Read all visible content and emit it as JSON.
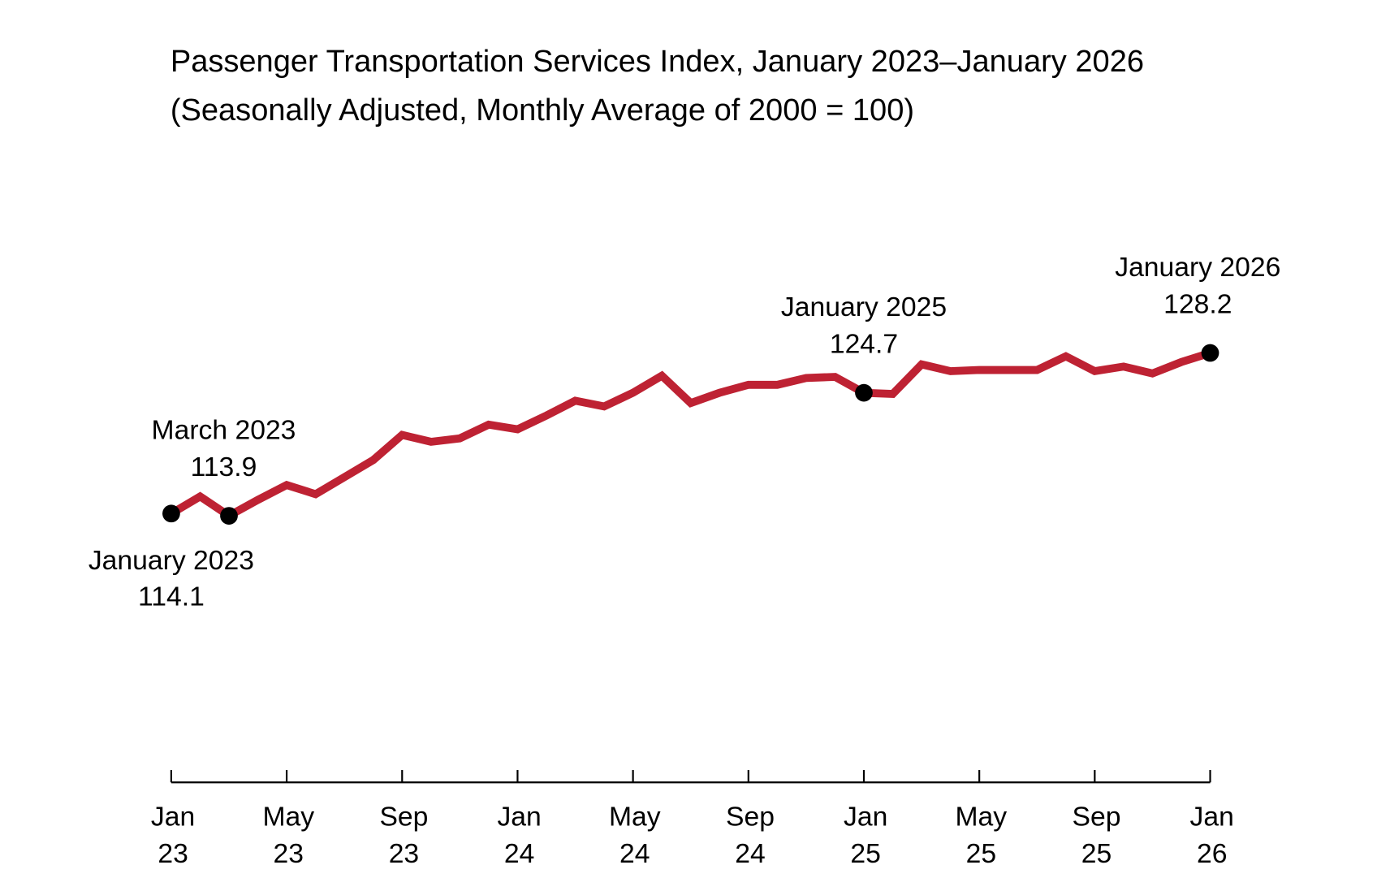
{
  "chart_data": {
    "type": "line",
    "title": "Passenger Transportation Services Index, January 2023–January 2026",
    "subtitle": "(Seasonally Adjusted, Monthly Average of 2000 = 100)",
    "xlabel": "",
    "ylabel": "",
    "grid": false,
    "legend": "none",
    "ylim": [
      90.5,
      135
    ],
    "line_color": "#BE2233",
    "marker_color": "#000000",
    "x": [
      "2023-01",
      "2023-02",
      "2023-03",
      "2023-04",
      "2023-05",
      "2023-06",
      "2023-07",
      "2023-08",
      "2023-09",
      "2023-10",
      "2023-11",
      "2023-12",
      "2024-01",
      "2024-02",
      "2024-03",
      "2024-04",
      "2024-05",
      "2024-06",
      "2024-07",
      "2024-08",
      "2024-09",
      "2024-10",
      "2024-11",
      "2024-12",
      "2025-01",
      "2025-02",
      "2025-03",
      "2025-04",
      "2025-05",
      "2025-06",
      "2025-07",
      "2025-08",
      "2025-09",
      "2025-10",
      "2025-11",
      "2025-12",
      "2026-01"
    ],
    "values": [
      114.1,
      115.6,
      113.9,
      115.3,
      116.6,
      115.8,
      117.3,
      118.8,
      121.0,
      120.4,
      120.7,
      121.9,
      121.5,
      122.7,
      124.0,
      123.5,
      124.7,
      126.2,
      123.8,
      124.7,
      125.4,
      125.4,
      126.0,
      126.1,
      124.7,
      124.6,
      127.2,
      126.6,
      126.7,
      126.7,
      126.7,
      127.9,
      126.6,
      127.0,
      126.4,
      127.4,
      128.2
    ],
    "x_ticks": [
      {
        "month": "Jan",
        "year": "23"
      },
      {
        "month": "May",
        "year": "23"
      },
      {
        "month": "Sep",
        "year": "23"
      },
      {
        "month": "Jan",
        "year": "24"
      },
      {
        "month": "May",
        "year": "24"
      },
      {
        "month": "Sep",
        "year": "24"
      },
      {
        "month": "Jan",
        "year": "25"
      },
      {
        "month": "May",
        "year": "25"
      },
      {
        "month": "Sep",
        "year": "25"
      },
      {
        "month": "Jan",
        "year": "26"
      }
    ],
    "annotations": [
      {
        "index": 0,
        "label": "January 2023",
        "value": "114.1",
        "position": "below"
      },
      {
        "index": 2,
        "label": "March 2023",
        "value": "113.9",
        "position": "above"
      },
      {
        "index": 24,
        "label": "January 2025",
        "value": "124.7",
        "position": "above"
      },
      {
        "index": 36,
        "label": "January 2026",
        "value": "128.2",
        "position": "above"
      }
    ]
  }
}
